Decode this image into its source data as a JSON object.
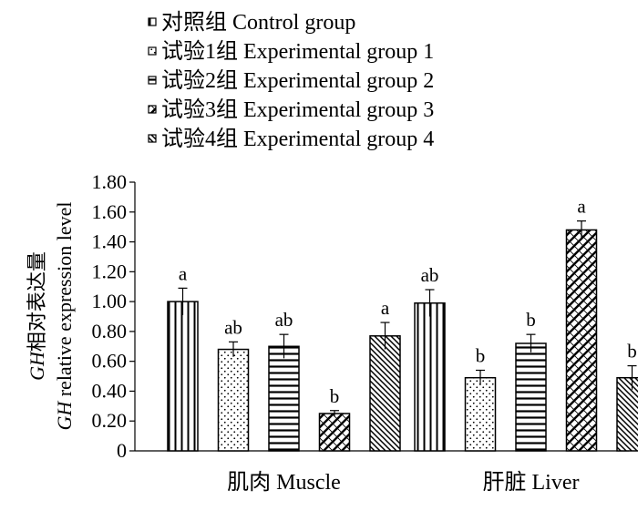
{
  "chart_data": {
    "type": "bar",
    "title": "",
    "ylabel_line1": "GH相对表达量",
    "ylabel_line2_italic": "GH",
    "ylabel_line2_rest": " relative expression level",
    "xlabel": "",
    "ylim": [
      0,
      1.8
    ],
    "yticks": [
      "0",
      "0.20",
      "0.40",
      "0.60",
      "0.80",
      "1.00",
      "1.20",
      "1.40",
      "1.60",
      "1.80"
    ],
    "ytick_values": [
      0,
      0.2,
      0.4,
      0.6,
      0.8,
      1.0,
      1.2,
      1.4,
      1.6,
      1.8
    ],
    "categories": [
      "肌肉 Muscle",
      "肝脏 Liver"
    ],
    "legend_position": "top",
    "series": [
      {
        "name": "对照组 Control group",
        "pattern": "vlines",
        "values": [
          1.0,
          0.99
        ],
        "errors": [
          0.09,
          0.09
        ],
        "labels": [
          "a",
          "ab"
        ]
      },
      {
        "name": "试验1组 Experimental group 1",
        "pattern": "dots",
        "values": [
          0.68,
          0.49
        ],
        "errors": [
          0.05,
          0.05
        ],
        "labels": [
          "ab",
          "b"
        ]
      },
      {
        "name": "试验2组 Experimental group 2",
        "pattern": "hlines",
        "values": [
          0.7,
          0.72
        ],
        "errors": [
          0.08,
          0.06
        ],
        "labels": [
          "ab",
          "b"
        ]
      },
      {
        "name": "试验3组 Experimental group 3",
        "pattern": "crosshatch",
        "values": [
          0.25,
          1.48
        ],
        "errors": [
          0.02,
          0.06
        ],
        "labels": [
          "b",
          "a"
        ]
      },
      {
        "name": "试验4组 Experimental group 4",
        "pattern": "diag",
        "values": [
          0.77,
          0.49
        ],
        "errors": [
          0.09,
          0.08
        ],
        "labels": [
          "a",
          "b"
        ]
      }
    ]
  }
}
